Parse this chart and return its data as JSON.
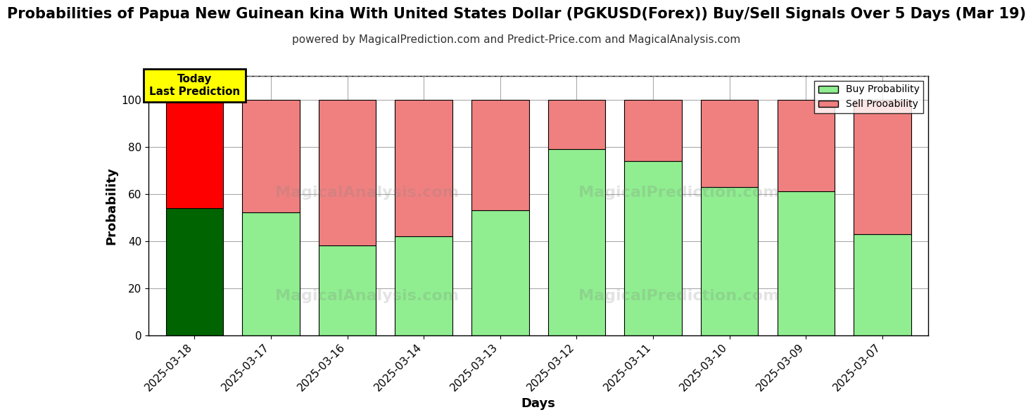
{
  "title": "Probabilities of Papua New Guinean kina With United States Dollar (PGKUSD(Forex)) Buy/Sell Signals Over 5 Days (Mar 19)",
  "subtitle": "powered by MagicalPrediction.com and Predict-Price.com and MagicalAnalysis.com",
  "xlabel": "Days",
  "ylabel": "Probability",
  "categories": [
    "2025-03-18",
    "2025-03-17",
    "2025-03-16",
    "2025-03-14",
    "2025-03-13",
    "2025-03-12",
    "2025-03-11",
    "2025-03-10",
    "2025-03-09",
    "2025-03-07"
  ],
  "buy_values": [
    54,
    52,
    38,
    42,
    53,
    79,
    74,
    63,
    61,
    43
  ],
  "sell_values": [
    46,
    48,
    62,
    58,
    47,
    21,
    26,
    37,
    39,
    57
  ],
  "today_buy_color": "#006400",
  "today_sell_color": "#ff0000",
  "buy_color": "#90EE90",
  "sell_color": "#F08080",
  "bar_edge_color": "#000000",
  "ylim": [
    0,
    110
  ],
  "yticks": [
    0,
    20,
    40,
    60,
    80,
    100
  ],
  "dashed_line_y": 110,
  "legend_buy_label": "Buy Probability",
  "legend_sell_label": "Sell Prooability",
  "today_box_text": "Today\nLast Prediction",
  "today_box_color": "#FFFF00",
  "today_box_edge_color": "#000000",
  "background_color": "#ffffff",
  "grid_color": "#aaaaaa",
  "title_fontsize": 15,
  "subtitle_fontsize": 11,
  "axis_label_fontsize": 13,
  "tick_fontsize": 11,
  "bar_width": 0.75
}
